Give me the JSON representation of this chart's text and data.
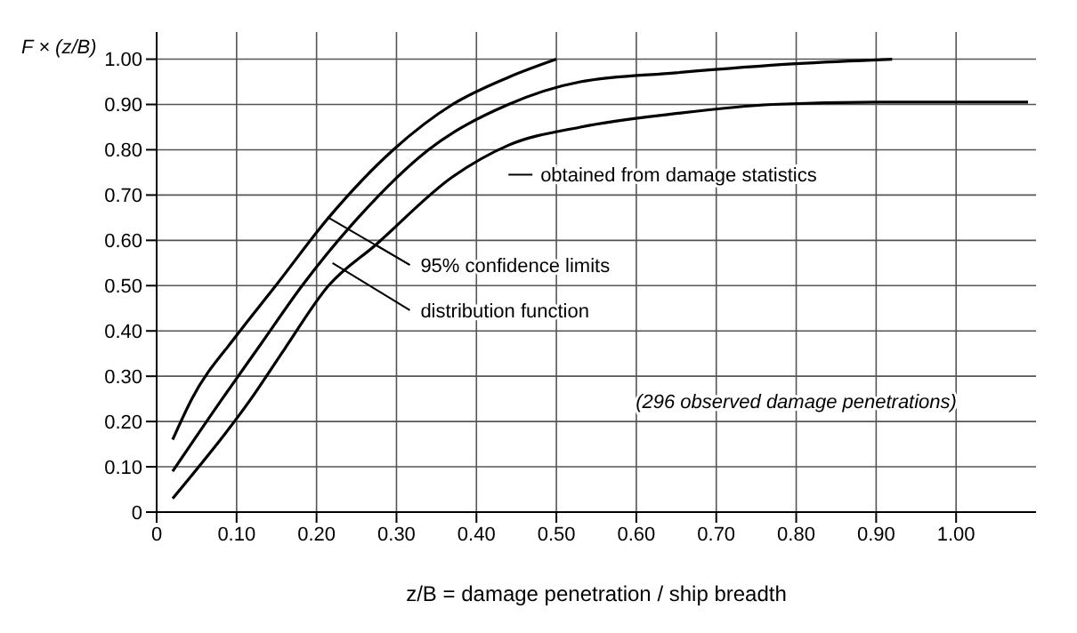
{
  "chart_data": {
    "type": "line",
    "ylabel": "F × (z/B)",
    "xlabel": "z/B = damage penetration / ship breadth",
    "annotations": [
      "obtained from damage statistics",
      {
        "text": "95% confidence limits",
        "x": 0.215,
        "y": 0.65
      },
      {
        "text": "distribution function",
        "x": 0.22,
        "y": 0.55
      },
      "(296 observed damage penetrations)"
    ],
    "series": [
      {
        "color": "#000000",
        "x": [
          0.02,
          0.044,
          0.1,
          0.149,
          0.215,
          0.296,
          0.37,
          0.44,
          0.5
        ],
        "values": [
          0.16,
          0.25,
          0.39,
          0.5,
          0.65,
          0.8,
          0.9,
          0.96,
          1.0
        ]
      },
      {
        "color": "#000000",
        "x": [
          0.02,
          0.082,
          0.13,
          0.182,
          0.252,
          0.34,
          0.44,
          0.53,
          0.65,
          0.8,
          0.92
        ],
        "values": [
          0.09,
          0.25,
          0.37,
          0.5,
          0.65,
          0.8,
          0.9,
          0.95,
          0.97,
          0.99,
          1.0
        ]
      },
      {
        "color": "#000000",
        "x": [
          0.02,
          0.118,
          0.16,
          0.215,
          0.274,
          0.37,
          0.44,
          0.53,
          0.65,
          0.77,
          0.9,
          1.09
        ],
        "values": [
          0.03,
          0.25,
          0.36,
          0.5,
          0.59,
          0.74,
          0.81,
          0.85,
          0.88,
          0.9,
          0.905,
          0.905
        ]
      }
    ],
    "xlim": [
      0,
      1.1
    ],
    "ylim": [
      0,
      1.06
    ],
    "xticks": [
      0,
      {
        "value": 0.1,
        "label": "0.10"
      },
      {
        "value": 0.2,
        "label": "0.20"
      },
      {
        "value": 0.3,
        "label": "0.30"
      },
      {
        "value": 0.4,
        "label": "0.40"
      },
      {
        "value": 0.5,
        "label": "0.50"
      },
      {
        "value": 0.6,
        "label": "0.60"
      },
      {
        "value": 0.7,
        "label": "0.70"
      },
      {
        "value": 0.8,
        "label": "0.80"
      },
      {
        "value": 0.9,
        "label": "0.90"
      },
      {
        "value": 1,
        "label": "1.00"
      }
    ],
    "yticks": [
      0,
      {
        "value": 0.1,
        "label": "0.10"
      },
      {
        "value": 0.2,
        "label": "0.20"
      },
      {
        "value": 0.3,
        "label": "0.30"
      },
      {
        "value": 0.4,
        "label": "0.40"
      },
      {
        "value": 0.5,
        "label": "0.50"
      },
      {
        "value": 0.6,
        "label": "0.60"
      },
      {
        "value": 0.7,
        "label": "0.70"
      },
      {
        "value": 0.8,
        "label": "0.80"
      },
      {
        "value": 0.9,
        "label": "0.90"
      },
      {
        "value": 1,
        "label": "1.00"
      }
    ],
    "grid": true,
    "legend": false,
    "marker": "none",
    "line_style": "solid"
  }
}
